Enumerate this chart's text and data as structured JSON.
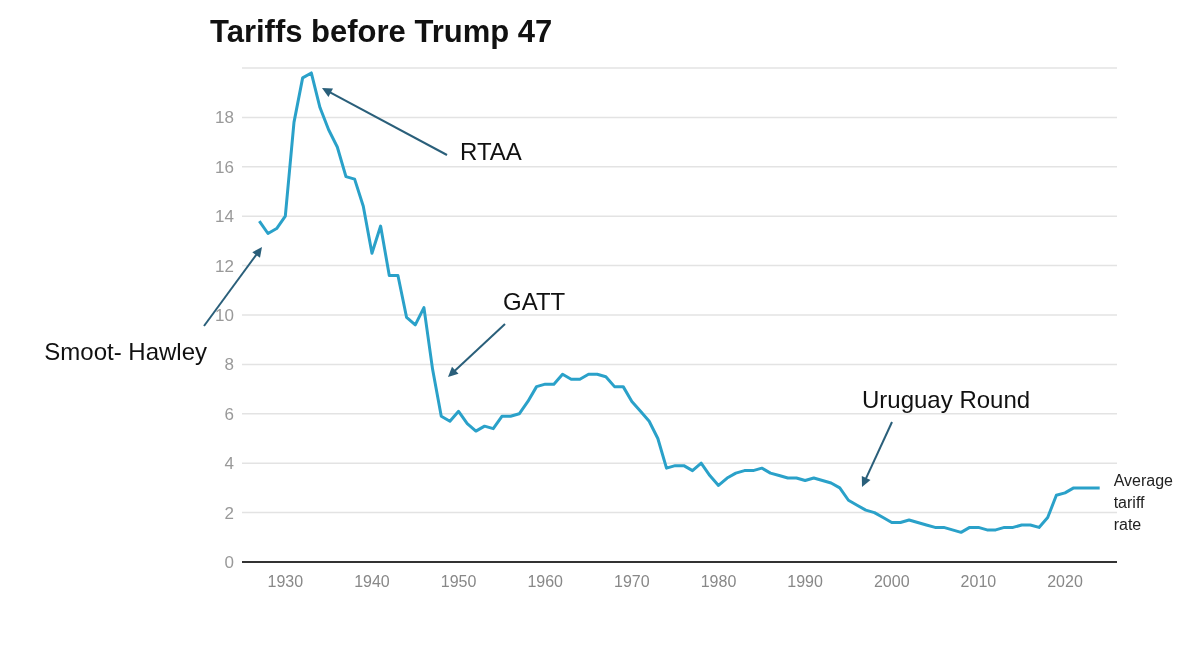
{
  "chart_data": {
    "type": "line",
    "title": "Tariffs before Trump 47",
    "x": [
      1927,
      1928,
      1929,
      1930,
      1931,
      1932,
      1933,
      1934,
      1935,
      1936,
      1937,
      1938,
      1939,
      1940,
      1941,
      1942,
      1943,
      1944,
      1945,
      1946,
      1947,
      1948,
      1949,
      1950,
      1951,
      1952,
      1953,
      1954,
      1955,
      1956,
      1957,
      1958,
      1959,
      1960,
      1961,
      1962,
      1963,
      1964,
      1965,
      1966,
      1967,
      1968,
      1969,
      1970,
      1971,
      1972,
      1973,
      1974,
      1975,
      1976,
      1977,
      1978,
      1979,
      1980,
      1981,
      1982,
      1983,
      1984,
      1985,
      1986,
      1987,
      1988,
      1989,
      1990,
      1991,
      1992,
      1993,
      1994,
      1995,
      1996,
      1997,
      1998,
      1999,
      2000,
      2001,
      2002,
      2003,
      2004,
      2005,
      2006,
      2007,
      2008,
      2009,
      2010,
      2011,
      2012,
      2013,
      2014,
      2015,
      2016,
      2017,
      2018,
      2019,
      2020,
      2021,
      2022,
      2023,
      2024
    ],
    "series": [
      {
        "name": "Average tariff rate",
        "color": "#2aa1c9",
        "values": [
          13.8,
          13.3,
          13.5,
          14.0,
          17.8,
          19.6,
          19.8,
          18.4,
          17.5,
          16.8,
          15.6,
          15.5,
          14.4,
          12.5,
          13.6,
          11.6,
          11.6,
          9.9,
          9.6,
          10.3,
          7.8,
          5.9,
          5.7,
          6.1,
          5.6,
          5.3,
          5.5,
          5.4,
          5.9,
          5.9,
          6.0,
          6.5,
          7.1,
          7.2,
          7.2,
          7.6,
          7.4,
          7.4,
          7.6,
          7.6,
          7.5,
          7.1,
          7.1,
          6.5,
          6.1,
          5.7,
          5.0,
          3.8,
          3.9,
          3.9,
          3.7,
          4.0,
          3.5,
          3.1,
          3.4,
          3.6,
          3.7,
          3.7,
          3.8,
          3.6,
          3.5,
          3.4,
          3.4,
          3.3,
          3.4,
          3.3,
          3.2,
          3.0,
          2.5,
          2.3,
          2.1,
          2.0,
          1.8,
          1.6,
          1.6,
          1.7,
          1.6,
          1.5,
          1.4,
          1.4,
          1.3,
          1.2,
          1.4,
          1.4,
          1.3,
          1.3,
          1.4,
          1.4,
          1.5,
          1.5,
          1.4,
          1.8,
          2.7,
          2.8,
          3.0,
          3.0,
          3.0,
          3.0
        ]
      }
    ],
    "xlim": [
      1925,
      2026
    ],
    "xticks": [
      1930,
      1940,
      1950,
      1960,
      1970,
      1980,
      1990,
      2000,
      2010,
      2020
    ],
    "ylim": [
      0,
      20
    ],
    "yticks": [
      0,
      2,
      4,
      6,
      8,
      10,
      12,
      14,
      16,
      18,
      {
        "value": 20,
        "label": null
      }
    ],
    "grid": "y",
    "marker": "none",
    "line_style": "solid",
    "annotations": [
      "RTAA",
      "GATT",
      "Smoot- Hawley",
      "Uruguay Round"
    ]
  }
}
